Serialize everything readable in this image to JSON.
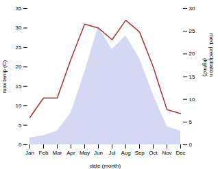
{
  "chart_data": {
    "type": "line",
    "categories": [
      "Jan",
      "Feb",
      "Mar",
      "Apr",
      "May",
      "Jun",
      "Jul",
      "Aug",
      "Sep",
      "Oct",
      "Nov",
      "Dec"
    ],
    "xlabel": "date (month)",
    "ylabel": "max temp (C)",
    "y2label": "med. precipitation\n(kg/m2)",
    "series": [
      {
        "type": "area",
        "axis": "y2",
        "color": "#b0b8e8",
        "values": [
          1.5,
          2,
          3,
          7,
          16,
          26,
          21,
          24,
          19,
          11,
          4,
          3
        ]
      },
      {
        "type": "line",
        "color": "#b03030",
        "values": [
          7,
          12,
          12,
          22,
          31,
          30,
          27,
          32,
          29,
          20,
          9,
          8
        ]
      }
    ],
    "ylim": [
      0,
      35
    ],
    "yticks": [
      0,
      5,
      10,
      15,
      20,
      25,
      30,
      35
    ],
    "y2lim": [
      0,
      30
    ],
    "y2ticks": [
      0,
      5,
      10,
      15,
      20,
      25,
      30
    ]
  }
}
